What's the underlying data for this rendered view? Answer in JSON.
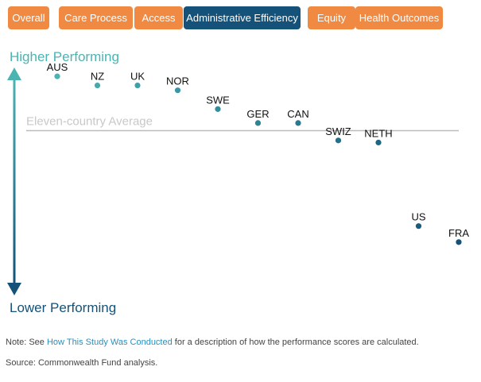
{
  "tabs": [
    {
      "label": "Overall",
      "active": false
    },
    {
      "label": "Care Process",
      "active": false
    },
    {
      "label": "Access",
      "active": false
    },
    {
      "label": "Administrative Efficiency",
      "active": true
    },
    {
      "label": "Equity",
      "active": false
    },
    {
      "label": "Health Outcomes",
      "active": false
    }
  ],
  "axis": {
    "top_label": "Higher Performing",
    "bottom_label": "Lower Performing"
  },
  "note": {
    "prefix": "Note: See ",
    "link_text": "How This Study Was Conducted",
    "suffix": " for a description of how the performance scores are calculated."
  },
  "source": "Source: Commonwealth Fund analysis.",
  "colors": {
    "tab_bg": "#f08a43",
    "tab_active_bg": "#14527a",
    "axis_top": "#4ab4b3",
    "axis_bottom": "#14527a",
    "average_line": "#bbbbbb",
    "average_text": "#c8c8c8"
  },
  "chart_data": {
    "type": "scatter",
    "series": [
      {
        "points": [
          {
            "label": "AUS",
            "rank": 1,
            "score": 0.78
          },
          {
            "label": "NZ",
            "rank": 2,
            "score": 0.65
          },
          {
            "label": "UK",
            "rank": 3,
            "score": 0.65
          },
          {
            "label": "NOR",
            "rank": 4,
            "score": 0.58
          },
          {
            "label": "SWE",
            "rank": 5,
            "score": 0.31
          },
          {
            "label": "GER",
            "rank": 6,
            "score": 0.11
          },
          {
            "label": "CAN",
            "rank": 7,
            "score": 0.11
          },
          {
            "label": "SWIZ",
            "rank": 8,
            "score": -0.14
          },
          {
            "label": "NETH",
            "rank": 9,
            "score": -0.17
          },
          {
            "label": "US",
            "rank": 10,
            "score": -1.37
          },
          {
            "label": "FRA",
            "rank": 11,
            "score": -1.6
          }
        ]
      }
    ],
    "average": {
      "label": "Eleven-country Average",
      "value": 0
    },
    "ylim": [
      -1.75,
      0.85
    ],
    "grid": false
  }
}
